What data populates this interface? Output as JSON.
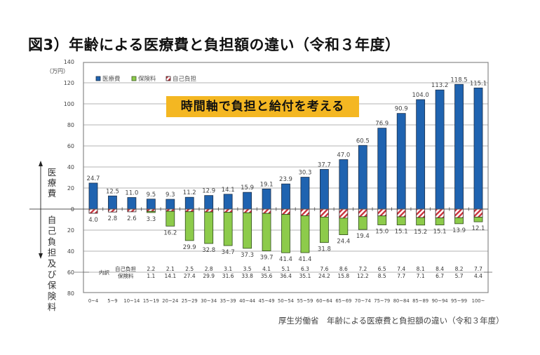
{
  "title": "図3）年齢による医療費と負担額の違い（令和３年度）",
  "banner": "時間軸で負担と給付を考える",
  "source": "厚生労働省　年齢による医療費と負担額の違い（令和３年度）",
  "unit_label": "（万円）",
  "side_labels": {
    "top": "医療費",
    "bottom": "自己負担及び保険料"
  },
  "table_labels": {
    "group": "内訳",
    "self": "自己負担",
    "premium": "保険料"
  },
  "colors": {
    "medical": "#1f63b0",
    "premium": "#8dcb4b",
    "self_stripe": "#c8323c",
    "outline": "#1b2f4a",
    "banner": "#f4b722"
  },
  "chart_data": {
    "type": "bar",
    "title": "年齢による医療費と負担額の違い（令和３年度）",
    "ylabel": "（万円）",
    "ylim": [
      -80,
      140
    ],
    "yticks": [
      140,
      120,
      100,
      80,
      60,
      40,
      20,
      0,
      20,
      40,
      60,
      80
    ],
    "grid": true,
    "legend_position": "top-left",
    "categories": [
      "0~4",
      "5~9",
      "10~14",
      "15~19",
      "20~24",
      "25~29",
      "30~34",
      "35~39",
      "40~44",
      "45~49",
      "50~54",
      "55~59",
      "60~64",
      "65~69",
      "70~74",
      "75~79",
      "80~84",
      "85~89",
      "90~94",
      "95~99",
      "100~"
    ],
    "series": [
      {
        "name": "医療費",
        "direction": "up",
        "values": [
          24.7,
          12.5,
          11.0,
          9.5,
          9.3,
          11.2,
          12.9,
          14.1,
          15.9,
          19.1,
          23.9,
          30.3,
          37.7,
          47.0,
          60.5,
          76.9,
          90.9,
          104.0,
          113.2,
          118.5,
          115.1
        ]
      },
      {
        "name": "自己負担",
        "direction": "down",
        "values": [
          4.0,
          2.8,
          2.6,
          2.2,
          2.1,
          2.5,
          2.8,
          3.1,
          3.5,
          4.1,
          5.1,
          6.3,
          7.6,
          8.6,
          7.2,
          6.5,
          7.4,
          8.1,
          8.4,
          8.2,
          7.7
        ]
      },
      {
        "name": "保険料",
        "direction": "down",
        "values": [
          0,
          0,
          0,
          1.1,
          14.1,
          27.4,
          29.9,
          31.6,
          33.8,
          35.6,
          36.4,
          35.1,
          24.2,
          15.8,
          12.2,
          8.5,
          7.7,
          7.1,
          6.7,
          5.7,
          4.4
        ]
      }
    ],
    "burden_totals": [
      4.0,
      2.8,
      2.6,
      3.3,
      16.2,
      29.9,
      32.8,
      34.7,
      37.3,
      39.7,
      41.4,
      41.4,
      31.8,
      24.4,
      19.4,
      15.0,
      15.1,
      15.2,
      15.1,
      13.9,
      12.1
    ],
    "breakdown_table": {
      "start_category": "15~19",
      "self": [
        "2.2",
        "2.1",
        "2.5",
        "2.8",
        "3.1",
        "3.5",
        "4.1",
        "5.1",
        "6.3",
        "7.6",
        "8.6",
        "7.2",
        "6.5",
        "7.4",
        "8.1",
        "8.4",
        "8.2",
        "7.7"
      ],
      "premium": [
        "1.1",
        "14.1",
        "27.4",
        "29.9",
        "31.6",
        "33.8",
        "35.6",
        "36.4",
        "35.1",
        "24.2",
        "15.8",
        "12.2",
        "8.5",
        "7.7",
        "7.1",
        "6.7",
        "5.7",
        "4.4"
      ]
    },
    "legend": [
      "医療費",
      "保険料",
      "自己負担"
    ]
  }
}
